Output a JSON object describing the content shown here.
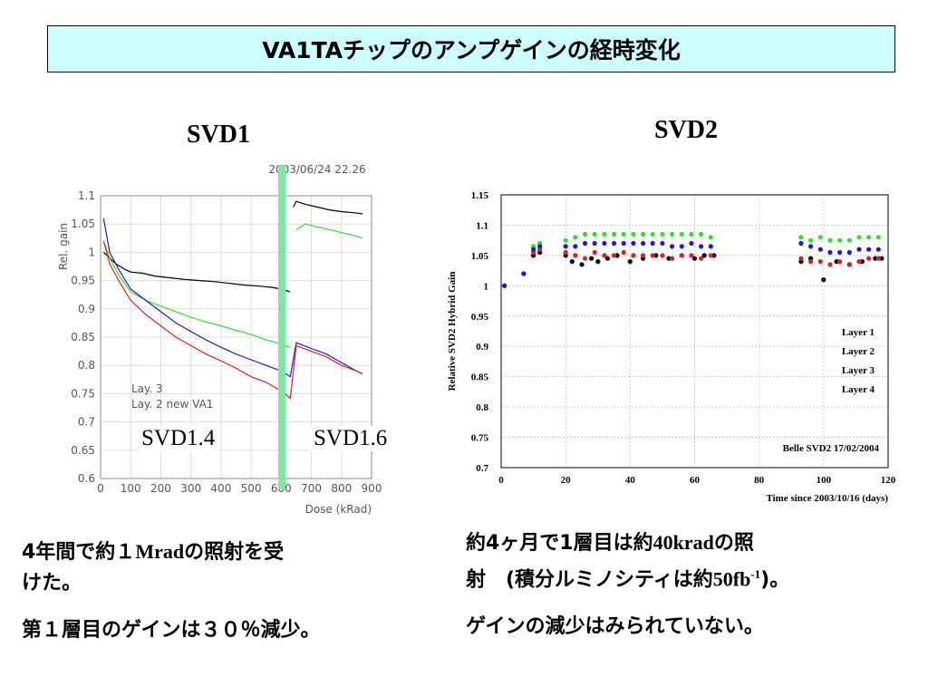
{
  "title": "VA1TAチップのアンプゲインの経時変化",
  "svd1": {
    "heading": "SVD1",
    "label_left": "SVD1.4",
    "label_right": "SVD1.6",
    "text_line1": "4年間で約１",
    "text_mrad": "Mrad",
    "text_line1b": "の照射を受",
    "text_line2": "けた。",
    "text_line3": "第１層目のゲインは３０％減少。"
  },
  "svd2": {
    "heading": "SVD2",
    "text_line1a": "約4ヶ月で1層目は約",
    "text_40krad": "40krad",
    "text_line1b": "の照",
    "text_line2a": "射　(積分ルミノシティは約",
    "text_50fb": "50fb",
    "text_sup": "-1",
    "text_line2b": ")。",
    "text_line3": "ゲインの減少はみられていない。"
  },
  "colors": {
    "title_bg": "#ccffff",
    "divider": "#7fe8a0",
    "black": "#000000",
    "red": "#e02020",
    "green": "#33dd33",
    "blue": "#1a1ad8"
  },
  "chart_data": [
    {
      "type": "line",
      "date_label": "2003/06/24   22.26",
      "xlabel": "Dose (kRad)",
      "ylabel": "Rel. gain",
      "xlim": [
        0,
        900
      ],
      "ylim": [
        0.6,
        1.1
      ],
      "x_ticks": [
        "0",
        "100",
        "200",
        "300",
        "400",
        "500",
        "600",
        "700",
        "800",
        "900"
      ],
      "y_ticks": [
        "0.6",
        "0.65",
        "0.7",
        "0.75",
        "0.8",
        "0.85",
        "0.9",
        "0.95",
        "1",
        "1.05",
        "1.1"
      ],
      "legend": [
        "Lay. 3",
        "Lay. 2 new VA1"
      ],
      "grid": true,
      "series": [
        {
          "color": "black",
          "x": [
            10,
            30,
            50,
            80,
            100,
            140,
            180,
            230,
            280,
            330,
            380,
            430,
            480,
            530,
            570,
            600,
            630,
            640,
            650,
            680,
            720,
            760,
            800,
            840,
            870
          ],
          "y": [
            1.0,
            0.99,
            0.98,
            0.97,
            0.965,
            0.963,
            0.958,
            0.955,
            0.952,
            0.95,
            0.948,
            0.945,
            0.942,
            0.94,
            0.938,
            0.935,
            0.93,
            1.08,
            1.09,
            1.085,
            1.08,
            1.075,
            1.072,
            1.07,
            1.068
          ]
        },
        {
          "color": "green",
          "x": [
            10,
            30,
            60,
            100,
            150,
            200,
            250,
            300,
            350,
            400,
            450,
            500,
            550,
            600,
            630,
            650,
            680,
            720,
            760,
            800,
            840,
            870
          ],
          "y": [
            1.02,
            0.99,
            0.96,
            0.93,
            0.915,
            0.905,
            0.895,
            0.885,
            0.877,
            0.87,
            0.862,
            0.855,
            0.845,
            0.838,
            0.832,
            1.04,
            1.05,
            1.045,
            1.04,
            1.035,
            1.03,
            1.025
          ]
        },
        {
          "color": "blue",
          "x": [
            10,
            30,
            60,
            100,
            150,
            200,
            250,
            300,
            350,
            400,
            450,
            500,
            550,
            600,
            630,
            650,
            700,
            750,
            800,
            850,
            870
          ],
          "y": [
            1.06,
            1.0,
            0.97,
            0.935,
            0.915,
            0.895,
            0.875,
            0.86,
            0.845,
            0.832,
            0.82,
            0.81,
            0.8,
            0.79,
            0.78,
            0.84,
            0.83,
            0.82,
            0.805,
            0.79,
            0.785
          ]
        },
        {
          "color": "red",
          "x": [
            10,
            30,
            60,
            100,
            150,
            200,
            250,
            300,
            350,
            400,
            450,
            500,
            550,
            600,
            630,
            650,
            700,
            750,
            800,
            850,
            870
          ],
          "y": [
            1.02,
            0.98,
            0.95,
            0.915,
            0.89,
            0.87,
            0.85,
            0.835,
            0.82,
            0.808,
            0.795,
            0.78,
            0.77,
            0.755,
            0.742,
            0.835,
            0.825,
            0.815,
            0.8,
            0.79,
            0.785
          ]
        }
      ]
    },
    {
      "type": "scatter",
      "xlabel": "Time since 2003/10/16 (days)",
      "ylabel": "Relative SVD2 Hybrid Gain",
      "xlim": [
        0,
        120
      ],
      "ylim": [
        0.7,
        1.15
      ],
      "x_ticks": [
        "0",
        "20",
        "40",
        "60",
        "80",
        "100",
        "120"
      ],
      "y_ticks": [
        "0.7",
        "0.75",
        "0.8",
        "0.85",
        "0.9",
        "0.95",
        "1",
        "1.05",
        "1.1",
        "1.15"
      ],
      "legend": [
        "Layer 1",
        "Layer 2",
        "Layer 3",
        "Layer 4"
      ],
      "footnote": "Belle SVD2 17/02/2004",
      "grid": true,
      "series": [
        {
          "name": "Layer 1",
          "color": "black",
          "x": [
            1,
            7,
            10,
            12,
            20,
            22,
            25,
            28,
            30,
            33,
            36,
            40,
            44,
            48,
            52,
            56,
            60,
            63,
            66,
            93,
            96,
            100,
            104,
            108,
            112,
            116,
            118
          ],
          "y": [
            1.0,
            1.02,
            1.05,
            1.055,
            1.05,
            1.04,
            1.035,
            1.045,
            1.04,
            1.045,
            1.05,
            1.04,
            1.045,
            1.05,
            1.045,
            1.05,
            1.045,
            1.05,
            1.05,
            1.04,
            1.045,
            1.01,
            1.04,
            1.035,
            1.04,
            1.045,
            1.045
          ]
        },
        {
          "name": "Layer 2",
          "color": "red",
          "x": [
            1,
            7,
            10,
            12,
            20,
            23,
            26,
            29,
            32,
            35,
            38,
            41,
            44,
            47,
            50,
            53,
            56,
            59,
            62,
            65,
            93,
            96,
            99,
            102,
            105,
            108,
            111,
            114,
            117
          ],
          "y": [
            1.0,
            1.02,
            1.055,
            1.06,
            1.055,
            1.05,
            1.045,
            1.055,
            1.05,
            1.05,
            1.055,
            1.05,
            1.05,
            1.05,
            1.05,
            1.045,
            1.05,
            1.05,
            1.045,
            1.05,
            1.045,
            1.04,
            1.04,
            1.035,
            1.04,
            1.035,
            1.04,
            1.045,
            1.045
          ]
        },
        {
          "name": "Layer 3",
          "color": "green",
          "x": [
            1,
            7,
            10,
            12,
            20,
            23,
            26,
            29,
            32,
            35,
            38,
            41,
            44,
            47,
            50,
            53,
            56,
            59,
            62,
            65,
            93,
            96,
            99,
            102,
            105,
            108,
            111,
            114,
            117
          ],
          "y": [
            1.0,
            1.02,
            1.065,
            1.07,
            1.075,
            1.08,
            1.085,
            1.085,
            1.085,
            1.085,
            1.085,
            1.085,
            1.085,
            1.085,
            1.085,
            1.085,
            1.085,
            1.085,
            1.085,
            1.08,
            1.08,
            1.075,
            1.08,
            1.075,
            1.075,
            1.075,
            1.08,
            1.08,
            1.08
          ]
        },
        {
          "name": "Layer 4",
          "color": "blue",
          "x": [
            1,
            7,
            10,
            12,
            20,
            23,
            26,
            29,
            32,
            35,
            38,
            41,
            44,
            47,
            50,
            53,
            56,
            59,
            62,
            65,
            93,
            96,
            99,
            102,
            105,
            108,
            111,
            114,
            117
          ],
          "y": [
            1.0,
            1.02,
            1.06,
            1.065,
            1.065,
            1.065,
            1.07,
            1.07,
            1.07,
            1.07,
            1.07,
            1.07,
            1.07,
            1.07,
            1.07,
            1.065,
            1.065,
            1.07,
            1.065,
            1.065,
            1.07,
            1.065,
            1.06,
            1.055,
            1.055,
            1.055,
            1.06,
            1.06,
            1.06
          ]
        }
      ]
    }
  ]
}
